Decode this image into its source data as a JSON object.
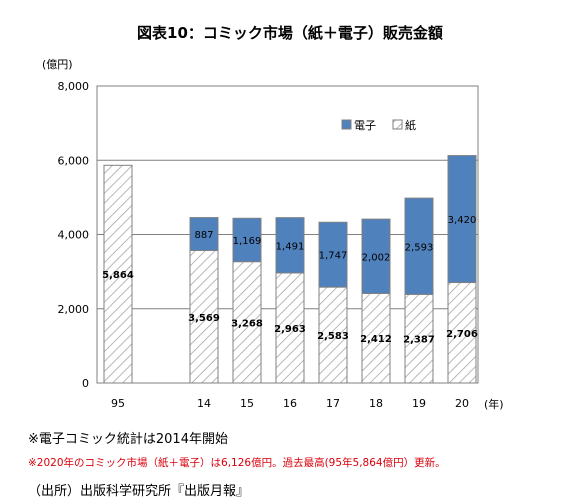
{
  "chart_data": {
    "type": "bar",
    "stacked": true,
    "title": "図表10：コミック市場（紙＋電子）販売金額",
    "ylabel": "(億円)",
    "xlabel": "(年)",
    "ylim": [
      0,
      8000
    ],
    "yticks": [
      "0",
      "2,000",
      "4,000",
      "6,000",
      "8,000"
    ],
    "ytick_values": [
      0,
      2000,
      4000,
      6000,
      8000
    ],
    "grid": true,
    "legend_position": "top-right",
    "categories": [
      "95",
      "14",
      "15",
      "16",
      "17",
      "18",
      "19",
      "20"
    ],
    "series": [
      {
        "name": "紙",
        "values": [
          5864,
          3569,
          3268,
          2963,
          2583,
          2412,
          2387,
          2706
        ],
        "labels": [
          "5,864",
          "3,569",
          "3,268",
          "2,963",
          "2,583",
          "2,412",
          "2,387",
          "2,706"
        ]
      },
      {
        "name": "電子",
        "values": [
          null,
          887,
          1169,
          1491,
          1747,
          2002,
          2593,
          3420
        ],
        "labels": [
          "",
          "887",
          "1,169",
          "1,491",
          "1,747",
          "2,002",
          "2,593",
          "3,420"
        ]
      }
    ],
    "colors": {
      "paper": "#ffffff",
      "paper_hatch": "#a6a6a6",
      "digital": "#4f81bd",
      "axis": "#808080",
      "grid": "#808080"
    }
  },
  "notes": {
    "note1": "※電子コミック統計は2014年開始",
    "note2": "※2020年のコミック市場（紙＋電子）は6,126億円。過去最高(95年5,864億円）更新。",
    "source": "（出所）出版科学研究所『出版月報』"
  }
}
